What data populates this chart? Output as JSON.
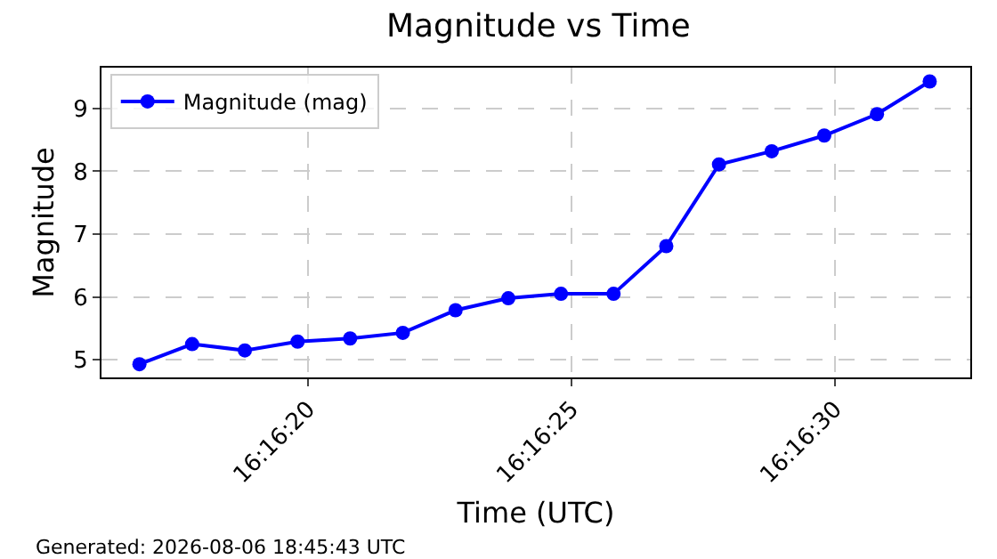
{
  "chart_data": {
    "type": "line",
    "title": "Magnitude vs Time",
    "xlabel": "Time (UTC)",
    "ylabel": "Magnitude",
    "x": [
      16.271333,
      16.271611,
      16.271889,
      16.272167,
      16.272444,
      16.272722,
      16.273,
      16.273278,
      16.273556,
      16.273833,
      16.274111,
      16.274389,
      16.274667,
      16.274944,
      16.275222,
      16.2755
    ],
    "series": [
      {
        "name": "Magnitude (mag)",
        "color": "#0000ff",
        "values": [
          4.93,
          5.25,
          5.15,
          5.29,
          5.34,
          5.43,
          5.79,
          5.98,
          6.05,
          6.05,
          6.81,
          8.11,
          8.32,
          8.57,
          8.91,
          9.43
        ]
      }
    ],
    "xlim": [
      16.271133,
      16.275714
    ],
    "xticks": [
      {
        "value": 16.272222,
        "label": "16:16:20"
      },
      {
        "value": 16.273611,
        "label": "16:16:25"
      },
      {
        "value": 16.275,
        "label": "16:16:30"
      }
    ],
    "ylim": [
      4.72,
      9.65
    ],
    "yticks": [
      5,
      6,
      7,
      8,
      9
    ],
    "grid": true,
    "legend": "top left",
    "marker": "circle",
    "line_style": "solid",
    "annotations": [
      "Generated: 2026-08-06 18:45:43 UTC"
    ]
  }
}
